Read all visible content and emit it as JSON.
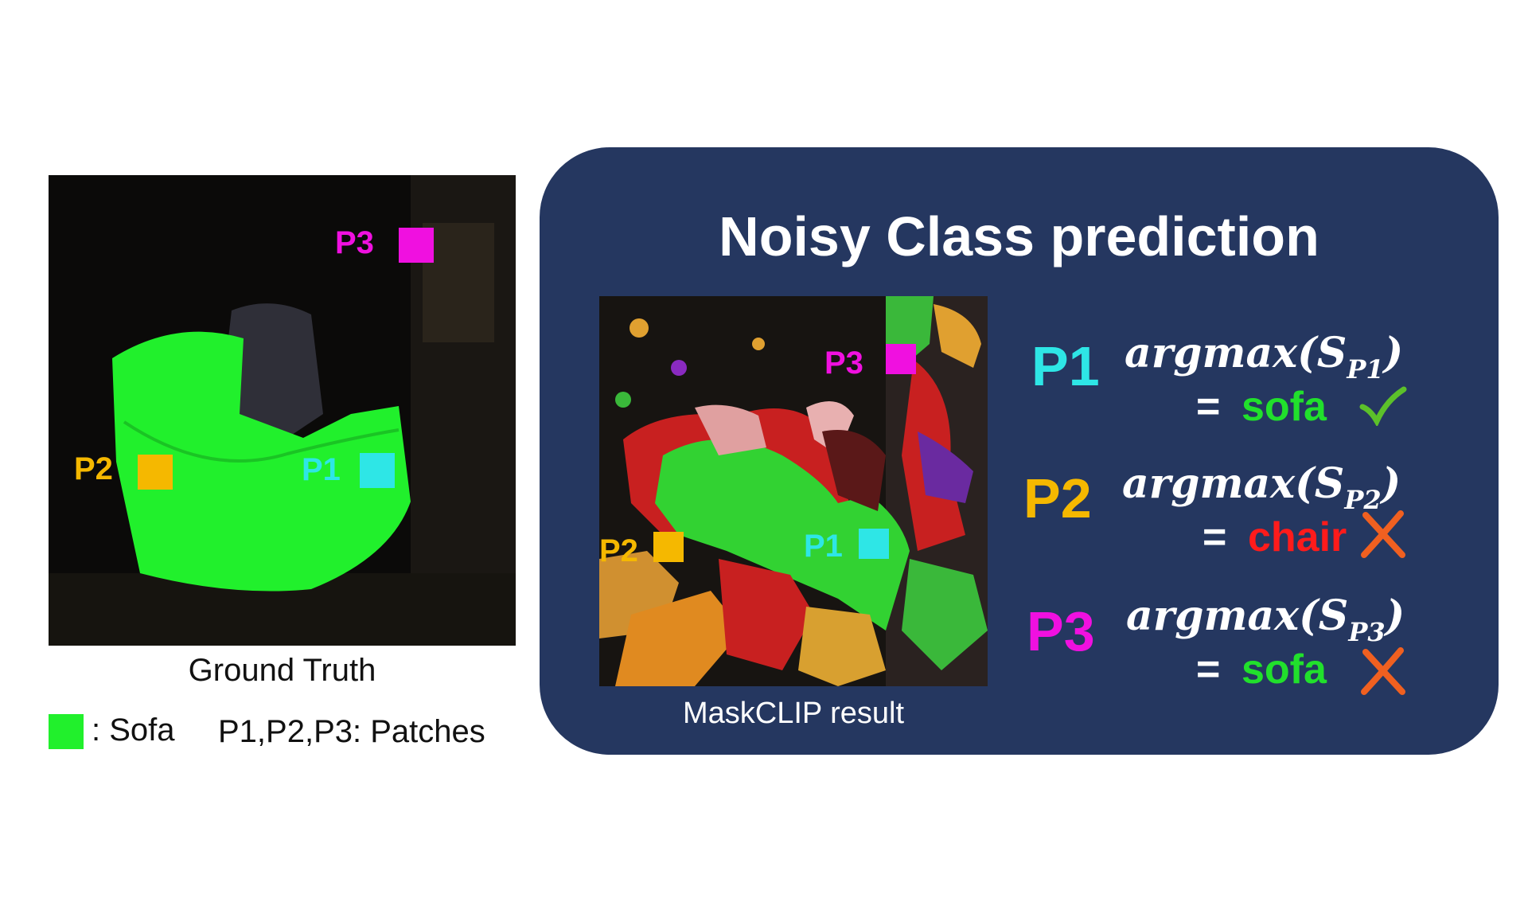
{
  "ground_truth": {
    "caption": "Ground Truth",
    "legend_label": ": Sofa",
    "legend_color": "#21f02c",
    "patches_label": "P1,P2,P3: Patches",
    "patch_labels": [
      "P1",
      "P2",
      "P3"
    ]
  },
  "panel": {
    "title": "Noisy Class prediction",
    "maskclip_caption": "MaskCLIP result",
    "patch_labels": [
      "P1",
      "P2",
      "P3"
    ],
    "rows": [
      {
        "label": "P1",
        "subscript": "P1",
        "class": "sofa",
        "class_color": "#21e02c",
        "mark": "check",
        "mark_color": "#5cc02a"
      },
      {
        "label": "P2",
        "subscript": "P2",
        "class": "chair",
        "class_color": "#ff1b1b",
        "mark": "cross",
        "mark_color": "#f06020"
      },
      {
        "label": "P3",
        "subscript": "P3",
        "class": "sofa",
        "class_color": "#21e02c",
        "mark": "cross",
        "mark_color": "#f06020"
      }
    ],
    "expr_prefix": "argmax(S",
    "expr_suffix": ")",
    "equals": "="
  },
  "colors": {
    "p1": "#2ee6e6",
    "p2": "#f5b800",
    "p3": "#f010e0",
    "panel_bg": "#253760"
  }
}
